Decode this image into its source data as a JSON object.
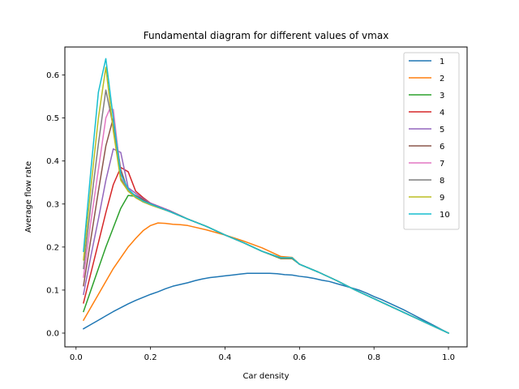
{
  "chart_data": {
    "type": "line",
    "title": "Fundamental diagram for different values of vmax",
    "xlabel": "Car density",
    "ylabel": "Average flow rate",
    "xlim": [
      -0.03,
      1.05
    ],
    "ylim": [
      -0.032,
      0.665
    ],
    "xticks": [
      0.0,
      0.2,
      0.4,
      0.6,
      0.8,
      1.0
    ],
    "xtick_labels": [
      "0.0",
      "0.2",
      "0.4",
      "0.6",
      "0.8",
      "1.0"
    ],
    "yticks": [
      0.0,
      0.1,
      0.2,
      0.3,
      0.4,
      0.5,
      0.6
    ],
    "ytick_labels": [
      "0.0",
      "0.1",
      "0.2",
      "0.3",
      "0.4",
      "0.5",
      "0.6"
    ],
    "grid": false,
    "legend_position": "top-right",
    "series": [
      {
        "name": "1",
        "color": "#1f77b4",
        "x": [
          0.02,
          0.04,
          0.06,
          0.08,
          0.1,
          0.12,
          0.14,
          0.16,
          0.18,
          0.2,
          0.22,
          0.24,
          0.26,
          0.28,
          0.3,
          0.32,
          0.34,
          0.36,
          0.38,
          0.4,
          0.42,
          0.44,
          0.46,
          0.48,
          0.5,
          0.52,
          0.54,
          0.56,
          0.58,
          0.6,
          0.62,
          0.64,
          0.66,
          0.68,
          0.7,
          0.72,
          0.74,
          0.76,
          0.78,
          0.8,
          0.82,
          0.84,
          0.86,
          0.88,
          0.9,
          0.92,
          0.94,
          0.96,
          0.98,
          1.0
        ],
        "y": [
          0.01,
          0.02,
          0.03,
          0.04,
          0.05,
          0.059,
          0.068,
          0.076,
          0.083,
          0.09,
          0.096,
          0.103,
          0.109,
          0.113,
          0.117,
          0.122,
          0.126,
          0.129,
          0.131,
          0.133,
          0.135,
          0.137,
          0.139,
          0.139,
          0.139,
          0.139,
          0.138,
          0.136,
          0.135,
          0.132,
          0.13,
          0.127,
          0.123,
          0.12,
          0.115,
          0.11,
          0.105,
          0.1,
          0.093,
          0.085,
          0.078,
          0.07,
          0.062,
          0.054,
          0.045,
          0.036,
          0.027,
          0.018,
          0.009,
          0.0
        ]
      },
      {
        "name": "2",
        "color": "#ff7f0e",
        "x": [
          0.02,
          0.04,
          0.06,
          0.08,
          0.1,
          0.12,
          0.14,
          0.16,
          0.18,
          0.2,
          0.22,
          0.24,
          0.26,
          0.28,
          0.3,
          0.35,
          0.4,
          0.45,
          0.5,
          0.55,
          0.58,
          0.6,
          0.65,
          0.7,
          0.75,
          0.8,
          0.85,
          0.9,
          0.95,
          1.0
        ],
        "y": [
          0.03,
          0.06,
          0.09,
          0.12,
          0.15,
          0.175,
          0.2,
          0.22,
          0.238,
          0.25,
          0.256,
          0.255,
          0.253,
          0.252,
          0.25,
          0.24,
          0.228,
          0.214,
          0.198,
          0.178,
          0.176,
          0.16,
          0.142,
          0.122,
          0.1,
          0.08,
          0.06,
          0.04,
          0.02,
          0.0
        ]
      },
      {
        "name": "3",
        "color": "#2ca02c",
        "x": [
          0.02,
          0.04,
          0.06,
          0.08,
          0.1,
          0.12,
          0.14,
          0.16,
          0.18,
          0.2,
          0.25,
          0.3,
          0.35,
          0.4,
          0.45,
          0.5,
          0.55,
          0.58,
          0.6,
          0.65,
          0.7,
          0.75,
          0.8,
          0.85,
          0.9,
          0.95,
          1.0
        ],
        "y": [
          0.05,
          0.1,
          0.15,
          0.2,
          0.245,
          0.29,
          0.32,
          0.318,
          0.305,
          0.3,
          0.285,
          0.265,
          0.248,
          0.228,
          0.21,
          0.19,
          0.173,
          0.173,
          0.16,
          0.142,
          0.122,
          0.1,
          0.08,
          0.06,
          0.04,
          0.02,
          0.0
        ]
      },
      {
        "name": "4",
        "color": "#d62728",
        "x": [
          0.02,
          0.04,
          0.06,
          0.08,
          0.1,
          0.12,
          0.14,
          0.16,
          0.18,
          0.2,
          0.25,
          0.3,
          0.35,
          0.4,
          0.45,
          0.5,
          0.55,
          0.58,
          0.6,
          0.65,
          0.7,
          0.75,
          0.8,
          0.85,
          0.9,
          0.95,
          1.0
        ],
        "y": [
          0.07,
          0.14,
          0.21,
          0.28,
          0.345,
          0.385,
          0.375,
          0.33,
          0.315,
          0.302,
          0.285,
          0.265,
          0.248,
          0.228,
          0.21,
          0.19,
          0.174,
          0.174,
          0.16,
          0.142,
          0.122,
          0.1,
          0.08,
          0.06,
          0.04,
          0.02,
          0.0
        ]
      },
      {
        "name": "5",
        "color": "#9467bd",
        "x": [
          0.02,
          0.04,
          0.06,
          0.08,
          0.1,
          0.12,
          0.14,
          0.16,
          0.18,
          0.2,
          0.25,
          0.3,
          0.35,
          0.4,
          0.45,
          0.5,
          0.55,
          0.58,
          0.6,
          0.65,
          0.7,
          0.75,
          0.8,
          0.85,
          0.9,
          0.95,
          1.0
        ],
        "y": [
          0.09,
          0.18,
          0.265,
          0.355,
          0.428,
          0.42,
          0.338,
          0.325,
          0.312,
          0.302,
          0.285,
          0.265,
          0.248,
          0.228,
          0.21,
          0.19,
          0.175,
          0.175,
          0.16,
          0.142,
          0.122,
          0.1,
          0.08,
          0.06,
          0.04,
          0.02,
          0.0
        ]
      },
      {
        "name": "6",
        "color": "#8c564b",
        "x": [
          0.02,
          0.04,
          0.06,
          0.08,
          0.1,
          0.12,
          0.14,
          0.16,
          0.18,
          0.2,
          0.25,
          0.3,
          0.35,
          0.4,
          0.45,
          0.5,
          0.55,
          0.58,
          0.6,
          0.65,
          0.7,
          0.75,
          0.8,
          0.85,
          0.9,
          0.95,
          1.0
        ],
        "y": [
          0.11,
          0.22,
          0.33,
          0.435,
          0.5,
          0.38,
          0.33,
          0.32,
          0.31,
          0.3,
          0.283,
          0.265,
          0.248,
          0.228,
          0.21,
          0.19,
          0.175,
          0.175,
          0.16,
          0.142,
          0.122,
          0.1,
          0.08,
          0.06,
          0.04,
          0.02,
          0.0
        ]
      },
      {
        "name": "7",
        "color": "#e377c2",
        "x": [
          0.02,
          0.04,
          0.06,
          0.08,
          0.09,
          0.1,
          0.12,
          0.14,
          0.16,
          0.18,
          0.2,
          0.25,
          0.3,
          0.35,
          0.4,
          0.45,
          0.5,
          0.55,
          0.58,
          0.6,
          0.65,
          0.7,
          0.75,
          0.8,
          0.85,
          0.9,
          0.95,
          1.0
        ],
        "y": [
          0.13,
          0.26,
          0.38,
          0.5,
          0.52,
          0.52,
          0.37,
          0.33,
          0.315,
          0.305,
          0.298,
          0.283,
          0.265,
          0.248,
          0.228,
          0.21,
          0.19,
          0.175,
          0.175,
          0.16,
          0.142,
          0.122,
          0.1,
          0.08,
          0.06,
          0.04,
          0.02,
          0.0
        ]
      },
      {
        "name": "8",
        "color": "#7f7f7f",
        "x": [
          0.02,
          0.04,
          0.06,
          0.08,
          0.1,
          0.12,
          0.14,
          0.16,
          0.18,
          0.2,
          0.25,
          0.3,
          0.35,
          0.4,
          0.45,
          0.5,
          0.55,
          0.58,
          0.6,
          0.65,
          0.7,
          0.75,
          0.8,
          0.85,
          0.9,
          0.95,
          1.0
        ],
        "y": [
          0.15,
          0.3,
          0.44,
          0.565,
          0.48,
          0.36,
          0.33,
          0.315,
          0.305,
          0.298,
          0.283,
          0.265,
          0.248,
          0.228,
          0.21,
          0.19,
          0.175,
          0.175,
          0.16,
          0.142,
          0.122,
          0.1,
          0.08,
          0.06,
          0.04,
          0.02,
          0.0
        ]
      },
      {
        "name": "9",
        "color": "#bcbd22",
        "x": [
          0.02,
          0.04,
          0.06,
          0.08,
          0.1,
          0.12,
          0.14,
          0.16,
          0.18,
          0.2,
          0.25,
          0.3,
          0.35,
          0.4,
          0.45,
          0.5,
          0.55,
          0.58,
          0.6,
          0.65,
          0.7,
          0.75,
          0.8,
          0.85,
          0.9,
          0.95,
          1.0
        ],
        "y": [
          0.17,
          0.34,
          0.5,
          0.618,
          0.47,
          0.355,
          0.33,
          0.315,
          0.305,
          0.298,
          0.283,
          0.265,
          0.248,
          0.228,
          0.21,
          0.19,
          0.175,
          0.175,
          0.16,
          0.142,
          0.122,
          0.1,
          0.08,
          0.06,
          0.04,
          0.02,
          0.0
        ]
      },
      {
        "name": "10",
        "color": "#17becf",
        "x": [
          0.02,
          0.04,
          0.06,
          0.08,
          0.1,
          0.12,
          0.14,
          0.16,
          0.18,
          0.2,
          0.25,
          0.3,
          0.35,
          0.4,
          0.45,
          0.5,
          0.55,
          0.58,
          0.6,
          0.65,
          0.7,
          0.75,
          0.8,
          0.85,
          0.9,
          0.95,
          1.0
        ],
        "y": [
          0.19,
          0.38,
          0.56,
          0.638,
          0.5,
          0.37,
          0.335,
          0.318,
          0.307,
          0.3,
          0.283,
          0.265,
          0.248,
          0.228,
          0.21,
          0.19,
          0.175,
          0.175,
          0.16,
          0.142,
          0.122,
          0.1,
          0.08,
          0.06,
          0.04,
          0.02,
          0.0
        ]
      }
    ]
  }
}
